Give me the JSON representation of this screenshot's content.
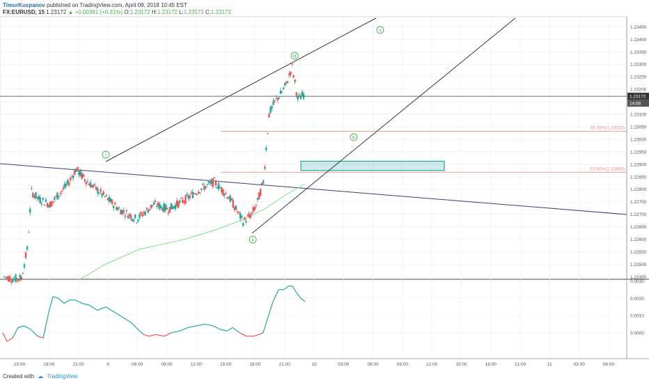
{
  "header": {
    "author": "TimurKuspanov",
    "published_text": "published on TradingView.com, April 09, 2018 10:45 EST",
    "symbol_line": "FX:EURUSD, 15",
    "last": "1.23172",
    "change": "+0.00381 (+0.31%)",
    "o_label": "O:",
    "o_value": "1.23172",
    "h_label": "H:",
    "h_value": "1.23172",
    "l_label": "L:",
    "l_value": "1.23172",
    "c_label": "C:",
    "c_value": "1.23172"
  },
  "footer": {
    "created_with": "Created with",
    "brand": "TradingView"
  },
  "colors": {
    "up": "#26a69a",
    "down": "#ef5350",
    "ma": "#7fe08a",
    "fib": "#f28e8e",
    "box": "#26a69a",
    "wave": "#4caf50",
    "trend": "#333333"
  },
  "chart_data": [
    {
      "type": "candlestick",
      "symbol": "FX:EURUSD",
      "interval": "15",
      "price_axis": {
        "ticks": [
          "1.23450",
          "1.23400",
          "1.23350",
          "1.23300",
          "1.23250",
          "1.23200",
          "1.23150",
          "1.23100",
          "1.23050",
          "1.23000",
          "1.22950",
          "1.22900",
          "1.22850",
          "1.22800",
          "1.22750",
          "1.22700",
          "1.22650",
          "1.22600",
          "1.22550",
          "1.22500",
          "1.22450"
        ],
        "range": [
          1.2244,
          1.2349
        ]
      },
      "time_axis": {
        "ticks": [
          "15:00",
          "18:00",
          "21:00",
          "9",
          "06:00",
          "09:00",
          "12:00",
          "15:00",
          "18:00",
          "21:00",
          "10",
          "03:00",
          "06:00",
          "09:00",
          "12:00",
          "15:00",
          "18:00",
          "21:00",
          "11",
          "03:00",
          "06:00"
        ]
      },
      "last_price_label": "1.23172",
      "countdown_label": "14:58",
      "last_price": 1.23172,
      "fib_levels": [
        {
          "label": "38.20%(1.23032)",
          "value": 1.23032
        },
        {
          "label": "61.80%(1.22868)",
          "value": 1.22868
        }
      ],
      "wave_labels": [
        "i",
        "ii",
        "iii",
        "iv",
        "v"
      ],
      "target_zone": {
        "low": 1.22875,
        "high": 1.22912
      }
    },
    {
      "type": "line",
      "indicator": "oscillator",
      "axis_ticks": [
        "0.0030",
        "0.0020",
        "0.0010",
        "0.0000"
      ],
      "range": [
        -0.0015,
        0.0031
      ]
    }
  ]
}
